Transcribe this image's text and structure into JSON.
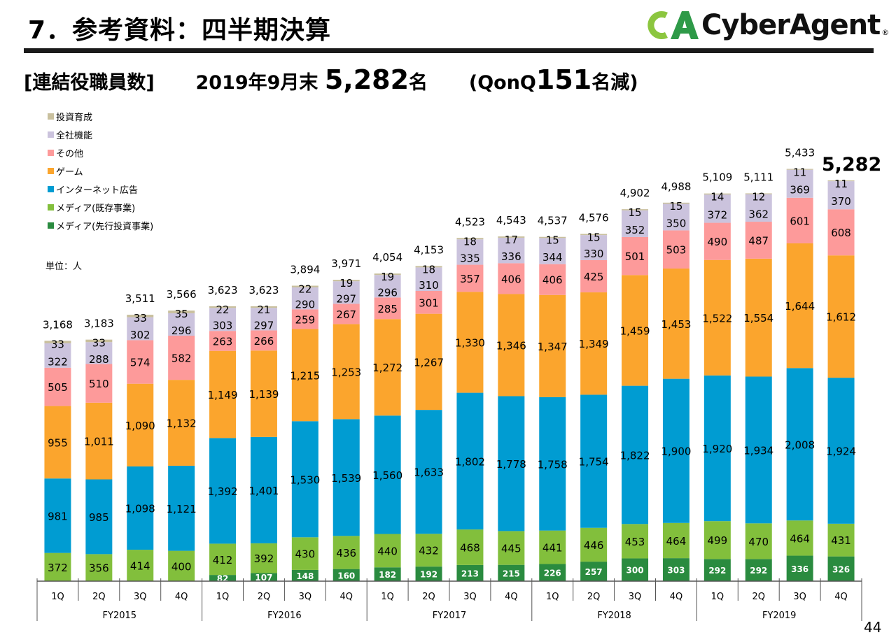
{
  "header": {
    "title": "7．参考資料：四半期決算",
    "logo_text": "CyberAgent",
    "logo_mark": "CA",
    "logo_reg": "®",
    "brand_colors": {
      "logo_green_light": "#8cc63f",
      "logo_green_dark": "#2e9a48"
    }
  },
  "subtitle": {
    "label": "[連結役職員数]",
    "date": "2019年9月末",
    "value": "5,282",
    "unit": "名",
    "change_prefix": "(QonQ",
    "change_value": "151",
    "change_suffix": "名減)"
  },
  "unit_label": "単位：人",
  "page_number": "44",
  "chart_data": {
    "type": "bar",
    "stacked": true,
    "title": "連結役職員数",
    "xlabel": "",
    "ylabel": "",
    "unit": "人",
    "ylim": [
      0,
      5500
    ],
    "grid": false,
    "legend_position": "top-left",
    "categories": [
      "1Q",
      "2Q",
      "3Q",
      "4Q",
      "1Q",
      "2Q",
      "3Q",
      "4Q",
      "1Q",
      "2Q",
      "3Q",
      "4Q",
      "1Q",
      "2Q",
      "3Q",
      "4Q",
      "1Q",
      "2Q",
      "3Q",
      "4Q"
    ],
    "fiscal_years": [
      "FY2015",
      "FY2016",
      "FY2017",
      "FY2018",
      "FY2019"
    ],
    "series": [
      {
        "name": "メディア(先行投資事業)",
        "color": "#2a8b3f",
        "label_color": "#ffffff",
        "values": [
          0,
          0,
          0,
          0,
          82,
          107,
          148,
          160,
          182,
          192,
          213,
          215,
          226,
          257,
          300,
          303,
          292,
          292,
          336,
          326
        ]
      },
      {
        "name": "メディア(既存事業)",
        "color": "#82bf3c",
        "label_color": "#000000",
        "values": [
          372,
          356,
          414,
          400,
          412,
          392,
          430,
          436,
          440,
          432,
          468,
          445,
          441,
          446,
          453,
          464,
          499,
          470,
          464,
          431
        ]
      },
      {
        "name": "インターネット広告",
        "color": "#009cd2",
        "label_color": "#000000",
        "values": [
          981,
          985,
          1098,
          1121,
          1392,
          1401,
          1530,
          1539,
          1560,
          1633,
          1802,
          1778,
          1758,
          1754,
          1822,
          1900,
          1920,
          1934,
          2008,
          1924
        ]
      },
      {
        "name": "ゲーム",
        "color": "#fba52d",
        "label_color": "#000000",
        "values": [
          955,
          1011,
          1090,
          1132,
          1149,
          1139,
          1215,
          1253,
          1272,
          1267,
          1330,
          1346,
          1347,
          1349,
          1459,
          1453,
          1522,
          1554,
          1644,
          1612
        ]
      },
      {
        "name": "その他",
        "color": "#fd9a9a",
        "label_color": "#000000",
        "values": [
          505,
          510,
          574,
          582,
          263,
          266,
          259,
          267,
          285,
          301,
          357,
          406,
          406,
          425,
          501,
          503,
          490,
          487,
          601,
          608
        ]
      },
      {
        "name": "全社機能",
        "color": "#cbc3dd",
        "label_color": "#000000",
        "values": [
          322,
          288,
          302,
          296,
          303,
          297,
          290,
          297,
          296,
          310,
          335,
          336,
          344,
          330,
          352,
          350,
          372,
          362,
          369,
          370
        ]
      },
      {
        "name": "投資育成",
        "color": "#c9c09e",
        "label_color": "#000000",
        "values": [
          33,
          33,
          33,
          35,
          22,
          21,
          22,
          19,
          19,
          18,
          18,
          17,
          15,
          15,
          15,
          15,
          14,
          12,
          11,
          11
        ]
      }
    ],
    "totals": [
      "3,168",
      "3,183",
      "3,511",
      "3,566",
      "3,623",
      "3,623",
      "3,894",
      "3,971",
      "4,054",
      "4,153",
      "4,523",
      "4,543",
      "4,537",
      "4,576",
      "4,902",
      "4,988",
      "5,109",
      "5,111",
      "5,433",
      "5,282"
    ],
    "legend_order": [
      "投資育成",
      "全社機能",
      "その他",
      "ゲーム",
      "インターネット広告",
      "メディア(既存事業)",
      "メディア(先行投資事業)"
    ]
  }
}
